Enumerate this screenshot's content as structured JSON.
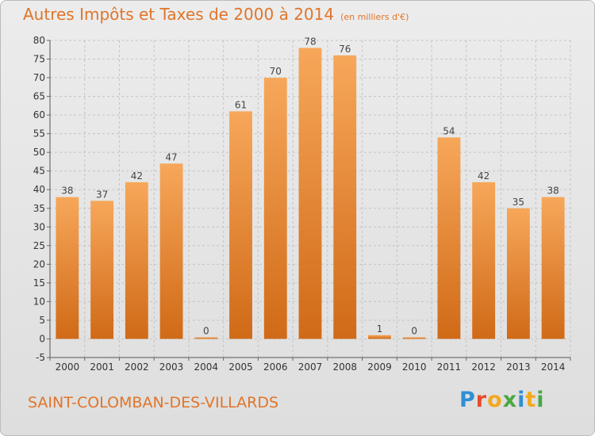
{
  "header": {
    "title": "Autres Impôts et Taxes de 2000 à 2014",
    "unit": "(en milliers d'€)"
  },
  "footer": {
    "commune": "SAINT-COLOMBAN-DES-VILLARDS",
    "logo": [
      "P",
      "r",
      "o",
      "x",
      "i",
      "t",
      "i"
    ]
  },
  "colors": {
    "bar_light": "#f7a75a",
    "bar_dark": "#d06a17",
    "title": "#e0752a"
  },
  "chart_data": {
    "type": "bar",
    "title": "Autres Impôts et Taxes de 2000 à 2014",
    "categories": [
      "2000",
      "2001",
      "2002",
      "2003",
      "2004",
      "2005",
      "2006",
      "2007",
      "2008",
      "2009",
      "2010",
      "2011",
      "2012",
      "2013",
      "2014"
    ],
    "values": [
      38,
      37,
      42,
      47,
      0,
      61,
      70,
      78,
      76,
      1,
      0,
      54,
      42,
      35,
      38
    ],
    "ylim": [
      -5,
      80
    ],
    "yticks": [
      -5,
      0,
      5,
      10,
      15,
      20,
      25,
      30,
      35,
      40,
      45,
      50,
      55,
      60,
      65,
      70,
      75,
      80
    ],
    "grid": true,
    "xlabel": "",
    "ylabel": ""
  }
}
